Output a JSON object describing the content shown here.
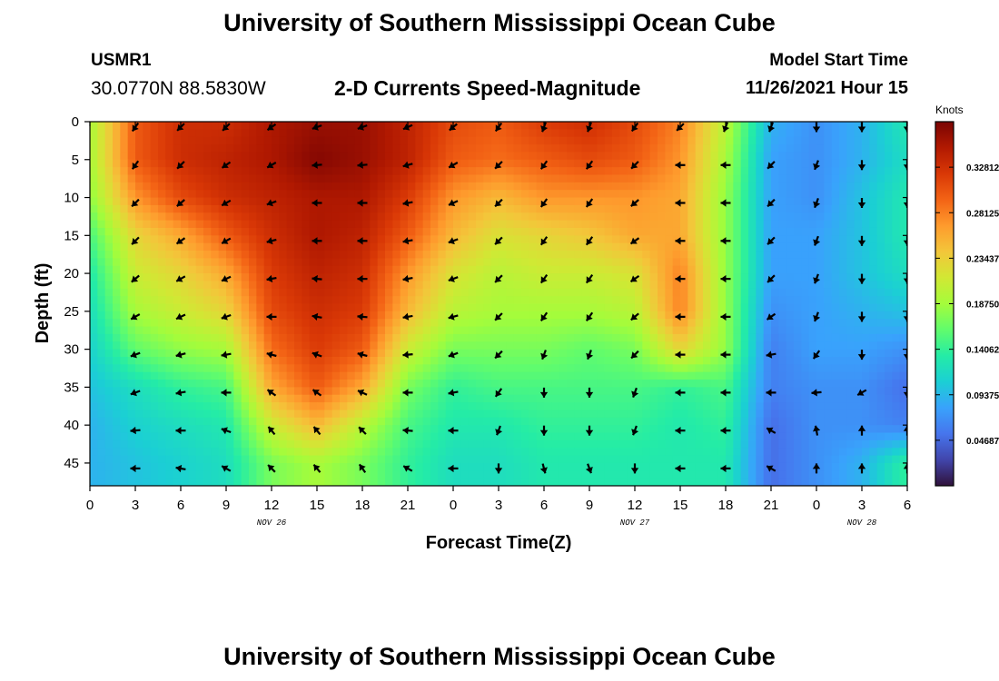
{
  "header": {
    "title": "University of Southern Mississippi Ocean Cube",
    "station_id": "USMR1",
    "coordinates": "30.0770N  88.5830W",
    "subtitle": "2-D Currents Speed-Magnitude",
    "model_start_label": "Model Start Time",
    "model_start_value": "11/26/2021 Hour 15"
  },
  "footer": {
    "title": "University of Southern Mississippi Ocean Cube"
  },
  "colors": {
    "colormap": [
      "#30123b",
      "#4145ab",
      "#4675ed",
      "#39a2fc",
      "#1bcfd4",
      "#24eca6",
      "#61fc6c",
      "#a4fc3b",
      "#d1e834",
      "#f3c63a",
      "#fe9b2d",
      "#f36315",
      "#d93806",
      "#b11901",
      "#7a0403"
    ]
  },
  "chart_data": {
    "type": "heatmap",
    "xlabel": "Forecast Time(Z)",
    "ylabel": "Depth (ft)",
    "x_tick_labels": [
      "0",
      "3",
      "6",
      "9",
      "12",
      "15",
      "18",
      "21",
      "0",
      "3",
      "6",
      "9",
      "12",
      "15",
      "18",
      "21",
      "0",
      "3",
      "6"
    ],
    "date_labels": [
      {
        "text": "NOV 26",
        "at_tick": 4
      },
      {
        "text": "NOV 27",
        "at_tick": 12
      },
      {
        "text": "NOV 28",
        "at_tick": 17
      }
    ],
    "y_ticks": [
      0,
      5,
      10,
      15,
      20,
      25,
      30,
      35,
      40,
      45
    ],
    "ylim": [
      0,
      48
    ],
    "depths": [
      0,
      5,
      10,
      15,
      20,
      25,
      30,
      35,
      40,
      45
    ],
    "colorbar": {
      "label": "Knots",
      "range": [
        0,
        0.375
      ],
      "tick_values": [
        0.328125,
        0.28125,
        0.234375,
        0.1875,
        0.140625,
        0.09375,
        0.046875
      ],
      "tick_labels": [
        "0.32812",
        "0.28125",
        "0.23437",
        "0.18750",
        "0.14062",
        "0.09375",
        "0.04687"
      ]
    },
    "speed_knots": [
      [
        0.19,
        0.3,
        0.33,
        0.33,
        0.35,
        0.36,
        0.36,
        0.34,
        0.31,
        0.3,
        0.32,
        0.33,
        0.31,
        0.28,
        0.2,
        0.09,
        0.07,
        0.09,
        0.13
      ],
      [
        0.19,
        0.3,
        0.33,
        0.34,
        0.35,
        0.37,
        0.36,
        0.34,
        0.3,
        0.29,
        0.3,
        0.31,
        0.3,
        0.27,
        0.19,
        0.08,
        0.07,
        0.09,
        0.12
      ],
      [
        0.18,
        0.27,
        0.31,
        0.33,
        0.34,
        0.35,
        0.35,
        0.32,
        0.27,
        0.25,
        0.27,
        0.27,
        0.27,
        0.26,
        0.18,
        0.08,
        0.07,
        0.1,
        0.13
      ],
      [
        0.15,
        0.23,
        0.26,
        0.3,
        0.33,
        0.35,
        0.34,
        0.3,
        0.25,
        0.22,
        0.23,
        0.24,
        0.26,
        0.26,
        0.18,
        0.08,
        0.08,
        0.1,
        0.13
      ],
      [
        0.13,
        0.21,
        0.23,
        0.26,
        0.32,
        0.34,
        0.33,
        0.27,
        0.22,
        0.2,
        0.21,
        0.21,
        0.22,
        0.28,
        0.18,
        0.08,
        0.08,
        0.1,
        0.12
      ],
      [
        0.12,
        0.19,
        0.21,
        0.23,
        0.31,
        0.33,
        0.32,
        0.25,
        0.2,
        0.19,
        0.19,
        0.19,
        0.2,
        0.28,
        0.18,
        0.07,
        0.08,
        0.09,
        0.1
      ],
      [
        0.11,
        0.16,
        0.18,
        0.19,
        0.29,
        0.32,
        0.3,
        0.21,
        0.17,
        0.17,
        0.17,
        0.16,
        0.17,
        0.23,
        0.18,
        0.06,
        0.08,
        0.08,
        0.07
      ],
      [
        0.1,
        0.12,
        0.14,
        0.15,
        0.26,
        0.3,
        0.26,
        0.17,
        0.14,
        0.15,
        0.15,
        0.15,
        0.15,
        0.14,
        0.15,
        0.06,
        0.07,
        0.07,
        0.05
      ],
      [
        0.09,
        0.11,
        0.12,
        0.13,
        0.21,
        0.25,
        0.2,
        0.15,
        0.13,
        0.13,
        0.14,
        0.14,
        0.14,
        0.13,
        0.14,
        0.05,
        0.07,
        0.07,
        0.06
      ],
      [
        0.09,
        0.1,
        0.11,
        0.12,
        0.17,
        0.19,
        0.17,
        0.14,
        0.12,
        0.12,
        0.13,
        0.13,
        0.13,
        0.13,
        0.13,
        0.05,
        0.07,
        0.09,
        0.14
      ]
    ],
    "direction_deg": [
      [
        200,
        215,
        225,
        225,
        235,
        250,
        250,
        245,
        230,
        215,
        200,
        200,
        215,
        225,
        200,
        200,
        180,
        180,
        180
      ],
      [
        215,
        215,
        225,
        235,
        240,
        265,
        265,
        255,
        240,
        225,
        215,
        215,
        225,
        270,
        270,
        225,
        200,
        180,
        180
      ],
      [
        225,
        225,
        230,
        240,
        250,
        270,
        270,
        260,
        245,
        225,
        215,
        215,
        230,
        270,
        270,
        225,
        200,
        180,
        180
      ],
      [
        235,
        225,
        235,
        240,
        255,
        270,
        270,
        260,
        250,
        225,
        215,
        215,
        235,
        270,
        270,
        225,
        200,
        180,
        180
      ],
      [
        235,
        230,
        240,
        245,
        260,
        275,
        270,
        260,
        250,
        225,
        215,
        215,
        235,
        270,
        270,
        225,
        200,
        180,
        180
      ],
      [
        230,
        240,
        245,
        250,
        270,
        280,
        275,
        260,
        255,
        225,
        215,
        215,
        230,
        270,
        270,
        235,
        200,
        180,
        180
      ],
      [
        240,
        250,
        255,
        260,
        285,
        290,
        285,
        265,
        250,
        225,
        200,
        200,
        225,
        270,
        270,
        260,
        215,
        180,
        180
      ],
      [
        240,
        250,
        260,
        270,
        305,
        305,
        295,
        270,
        260,
        215,
        180,
        180,
        200,
        270,
        270,
        270,
        265,
        240,
        180
      ],
      [
        240,
        265,
        270,
        290,
        320,
        320,
        315,
        275,
        270,
        200,
        180,
        180,
        200,
        270,
        270,
        300,
        350,
        360,
        0
      ],
      [
        245,
        270,
        280,
        300,
        315,
        320,
        325,
        300,
        270,
        180,
        165,
        160,
        180,
        270,
        270,
        300,
        0,
        0,
        0
      ]
    ]
  }
}
